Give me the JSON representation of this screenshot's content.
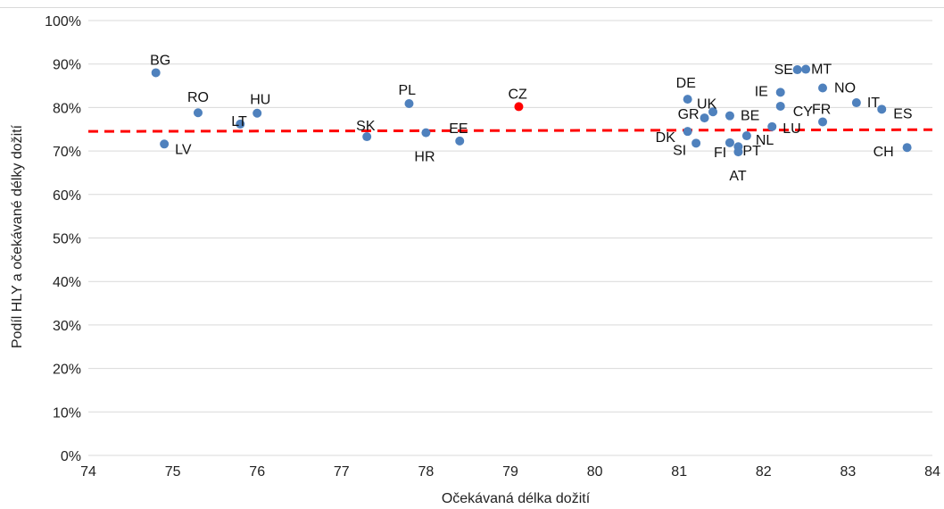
{
  "chart_data": {
    "type": "scatter",
    "xlabel": "Očekávaná délka dožití",
    "ylabel": "Podíl HLY a očekávané délky dožití",
    "xlim": [
      74,
      84
    ],
    "ylim": [
      0,
      100
    ],
    "x_ticks": [
      "74",
      "75",
      "76",
      "77",
      "78",
      "79",
      "80",
      "81",
      "82",
      "83",
      "84"
    ],
    "y_ticks": [
      "0%",
      "10%",
      "20%",
      "30%",
      "40%",
      "50%",
      "60%",
      "70%",
      "80%",
      "90%",
      "100%"
    ],
    "grid": "horizontal",
    "colors": {
      "points": "#4f81bd",
      "highlight": "#ff0000",
      "trend": "#ff0000",
      "grid": "#d9d9d9"
    },
    "points": [
      {
        "label": "BG",
        "x": 74.8,
        "y": 88.0
      },
      {
        "label": "LV",
        "x": 74.9,
        "y": 71.6
      },
      {
        "label": "RO",
        "x": 75.3,
        "y": 78.8
      },
      {
        "label": "LT",
        "x": 75.8,
        "y": 76.2
      },
      {
        "label": "HU",
        "x": 76.0,
        "y": 78.7
      },
      {
        "label": "SK",
        "x": 77.3,
        "y": 73.3
      },
      {
        "label": "PL",
        "x": 77.8,
        "y": 80.9
      },
      {
        "label": "HR",
        "x": 78.0,
        "y": 74.2
      },
      {
        "label": "EE",
        "x": 78.4,
        "y": 72.3
      },
      {
        "label": "CZ",
        "x": 79.1,
        "y": 80.2,
        "highlight": true
      },
      {
        "label": "DE",
        "x": 81.1,
        "y": 81.9
      },
      {
        "label": "DK",
        "x": 81.1,
        "y": 74.5
      },
      {
        "label": "SI",
        "x": 81.2,
        "y": 71.8
      },
      {
        "label": "GR",
        "x": 81.3,
        "y": 77.6
      },
      {
        "label": "UK",
        "x": 81.4,
        "y": 79.0
      },
      {
        "label": "BE",
        "x": 81.6,
        "y": 78.1
      },
      {
        "label": "FI",
        "x": 81.6,
        "y": 71.9
      },
      {
        "label": "PT",
        "x": 81.7,
        "y": 71.0
      },
      {
        "label": "AT",
        "x": 81.7,
        "y": 69.8
      },
      {
        "label": "NL",
        "x": 81.8,
        "y": 73.5
      },
      {
        "label": "LU",
        "x": 82.1,
        "y": 75.6
      },
      {
        "label": "IE",
        "x": 82.2,
        "y": 83.5
      },
      {
        "label": "CY",
        "x": 82.2,
        "y": 80.3
      },
      {
        "label": "SE",
        "x": 82.4,
        "y": 88.7
      },
      {
        "label": "MT",
        "x": 82.5,
        "y": 88.8
      },
      {
        "label": "NO",
        "x": 82.7,
        "y": 84.5
      },
      {
        "label": "FR",
        "x": 82.7,
        "y": 76.7
      },
      {
        "label": "IT",
        "x": 83.1,
        "y": 81.1
      },
      {
        "label": "ES",
        "x": 83.4,
        "y": 79.6
      },
      {
        "label": "CH",
        "x": 83.7,
        "y": 70.8
      }
    ],
    "trendline": {
      "x": [
        74,
        84
      ],
      "y": [
        74.5,
        74.9
      ],
      "style": "dashed"
    }
  }
}
